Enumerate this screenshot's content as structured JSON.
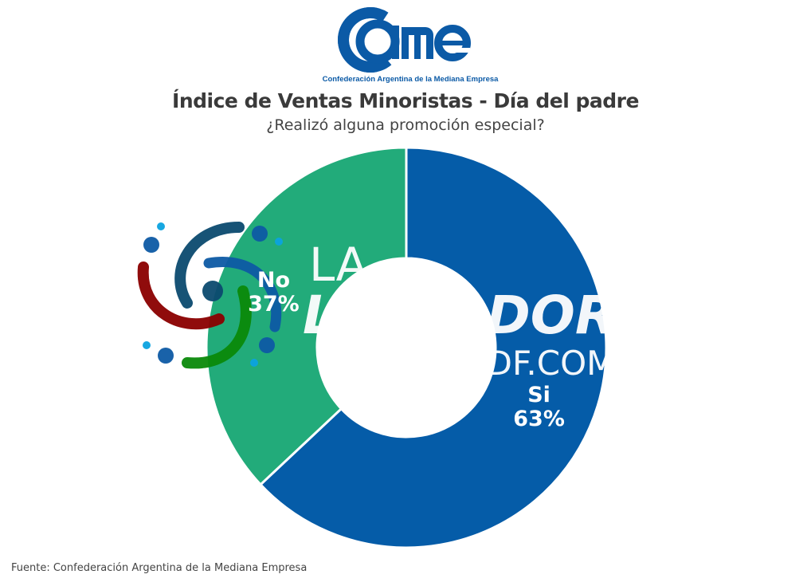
{
  "logo": {
    "text": "cme",
    "tagline": "Confederación Argentina de la Mediana Empresa"
  },
  "watermark": {
    "line1": "LA",
    "line2": "L      ADOR",
    "line3": "TDF.COM"
  },
  "colors": {
    "si": "#055ca8",
    "no": "#22ab7a",
    "title": "#3a3a3a",
    "logo": "#0b5aa6"
  },
  "chart_data": {
    "type": "pie",
    "donut": true,
    "title": "Índice de Ventas Minoristas - Día del padre",
    "subtitle": "¿Realizó alguna promoción especial?",
    "slices": [
      {
        "label": "Si",
        "value": 63,
        "display": "63%",
        "color": "#055ca8"
      },
      {
        "label": "No",
        "value": 37,
        "display": "37%",
        "color": "#22ab7a"
      }
    ]
  },
  "source": "Fuente: Confederación Argentina de la Mediana Empresa"
}
